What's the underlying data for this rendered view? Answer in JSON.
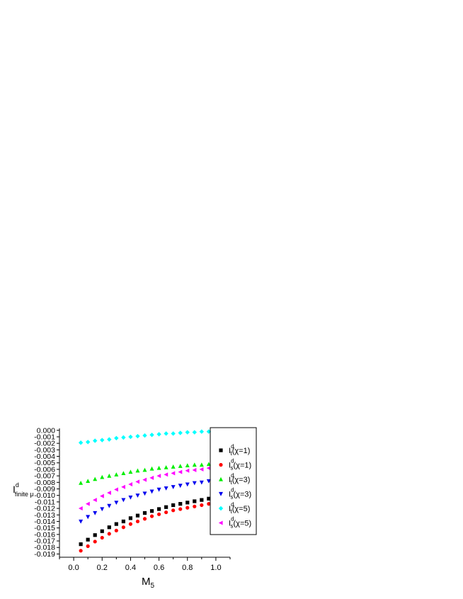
{
  "chart_data": {
    "type": "scatter",
    "xlabel": "M",
    "xlabel_sub": "5",
    "ylabel": "I",
    "ylabel_sup": "d",
    "ylabel_sub": "finite μ",
    "xlim": [
      -0.1,
      1.1
    ],
    "ylim": [
      -0.0195,
      0.0003
    ],
    "xticks": [
      0.0,
      0.2,
      0.4,
      0.6,
      0.8,
      1.0
    ],
    "xtick_labels": [
      "0.0",
      "0.2",
      "0.4",
      "0.6",
      "0.8",
      "1.0"
    ],
    "yticks": [
      0.0,
      -0.001,
      -0.002,
      -0.003,
      -0.004,
      -0.005,
      -0.006,
      -0.007,
      -0.008,
      -0.009,
      -0.01,
      -0.011,
      -0.012,
      -0.013,
      -0.014,
      -0.015,
      -0.016,
      -0.017,
      -0.018,
      -0.019
    ],
    "ytick_labels": [
      "0.000",
      "-0.001",
      "-0.002",
      "-0.003",
      "-0.004",
      "-0.005",
      "-0.006",
      "-0.007",
      "-0.008",
      "-0.009",
      "-0.010",
      "-0.011",
      "-0.012",
      "-0.013",
      "-0.014",
      "-0.015",
      "-0.016",
      "-0.017",
      "-0.018",
      "-0.019"
    ],
    "grid": false,
    "legend_position": "right",
    "x": [
      0.05,
      0.1,
      0.15,
      0.2,
      0.25,
      0.3,
      0.35,
      0.4,
      0.45,
      0.5,
      0.55,
      0.6,
      0.65,
      0.7,
      0.75,
      0.8,
      0.85,
      0.9,
      0.95
    ],
    "series": [
      {
        "legend_main": "I",
        "legend_sup": "d",
        "legend_sub": "t",
        "legend_tail": "(χ=1)",
        "marker": "square",
        "color": "#000000",
        "values": [
          -0.0175,
          -0.0168,
          -0.0161,
          -0.0155,
          -0.0149,
          -0.0144,
          -0.014,
          -0.0135,
          -0.0131,
          -0.0127,
          -0.0124,
          -0.0121,
          -0.0118,
          -0.0115,
          -0.0113,
          -0.0111,
          -0.0109,
          -0.0107,
          -0.0105
        ]
      },
      {
        "legend_main": "I",
        "legend_sup": "d",
        "legend_sub": "s",
        "legend_tail": "(χ=1)",
        "marker": "circle",
        "color": "#ff0000",
        "values": [
          -0.0185,
          -0.0178,
          -0.0171,
          -0.0165,
          -0.0159,
          -0.0154,
          -0.0149,
          -0.0144,
          -0.014,
          -0.0136,
          -0.0132,
          -0.0129,
          -0.0126,
          -0.0123,
          -0.0121,
          -0.0119,
          -0.0117,
          -0.0115,
          -0.0113
        ]
      },
      {
        "legend_main": "I",
        "legend_sup": "d",
        "legend_sub": "t",
        "legend_tail": "(χ=3)",
        "marker": "triangle-up",
        "color": "#00ee00",
        "values": [
          -0.0081,
          -0.0078,
          -0.0075,
          -0.0072,
          -0.007,
          -0.0068,
          -0.0066,
          -0.0064,
          -0.0062,
          -0.0061,
          -0.0059,
          -0.0058,
          -0.0057,
          -0.0056,
          -0.0055,
          -0.0054,
          -0.0053,
          -0.0053,
          -0.0052
        ]
      },
      {
        "legend_main": "I",
        "legend_sup": "d",
        "legend_sub": "s",
        "legend_tail": "(χ=3)",
        "marker": "triangle-down",
        "color": "#0000ee",
        "values": [
          -0.014,
          -0.0133,
          -0.0127,
          -0.0121,
          -0.0116,
          -0.0111,
          -0.0107,
          -0.0103,
          -0.01,
          -0.0097,
          -0.0094,
          -0.0091,
          -0.0089,
          -0.0087,
          -0.0085,
          -0.0083,
          -0.0081,
          -0.008,
          -0.0078
        ]
      },
      {
        "legend_main": "I",
        "legend_sup": "d",
        "legend_sub": "t",
        "legend_tail": "(χ=5)",
        "marker": "diamond",
        "color": "#00ffff",
        "values": [
          -0.0019,
          -0.0018,
          -0.0016,
          -0.0015,
          -0.0014,
          -0.0012,
          -0.0011,
          -0.001,
          -0.0009,
          -0.0008,
          -0.0007,
          -0.0006,
          -0.0005,
          -0.0005,
          -0.0004,
          -0.0003,
          -0.0003,
          -0.0002,
          -0.0002
        ]
      },
      {
        "legend_main": "I",
        "legend_sup": "d",
        "legend_sub": "s",
        "legend_tail": "(χ=5)",
        "marker": "triangle-left",
        "color": "#ff00ff",
        "values": [
          -0.012,
          -0.0113,
          -0.0107,
          -0.0101,
          -0.0096,
          -0.0091,
          -0.0087,
          -0.0083,
          -0.0079,
          -0.0076,
          -0.0073,
          -0.007,
          -0.0068,
          -0.0066,
          -0.0064,
          -0.0062,
          -0.0061,
          -0.006,
          -0.0058
        ]
      }
    ]
  }
}
